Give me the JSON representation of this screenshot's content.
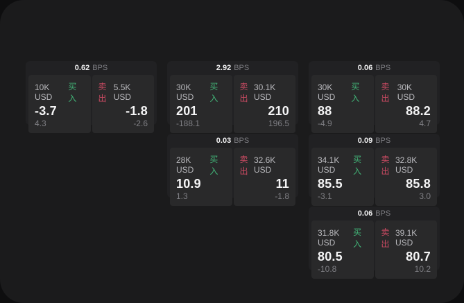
{
  "colors": {
    "buy_green": "#42b578",
    "sell_red": "#c94a62",
    "panel_bg": "#1b1b1c",
    "card_bg": "#212123",
    "subcard_bg": "#29292a"
  },
  "cards": [
    {
      "bps_value": "0.62",
      "bps_unit": "BPS",
      "buy": {
        "amount": "10K USD",
        "side_label": "买入",
        "value": "-3.7",
        "delta": "4.3"
      },
      "sell": {
        "side_label": "卖出",
        "amount": "5.5K USD",
        "value": "-1.8",
        "delta": "-2.6"
      }
    },
    {
      "bps_value": "2.92",
      "bps_unit": "BPS",
      "buy": {
        "amount": "30K USD",
        "side_label": "买入",
        "value": "201",
        "delta": "-188.1"
      },
      "sell": {
        "side_label": "卖出",
        "amount": "30.1K USD",
        "value": "210",
        "delta": "196.5"
      }
    },
    {
      "bps_value": "0.06",
      "bps_unit": "BPS",
      "buy": {
        "amount": "30K USD",
        "side_label": "买入",
        "value": "88",
        "delta": "-4.9"
      },
      "sell": {
        "side_label": "卖出",
        "amount": "30K USD",
        "value": "88.2",
        "delta": "4.7"
      }
    },
    {
      "bps_value": "0.03",
      "bps_unit": "BPS",
      "buy": {
        "amount": "28K USD",
        "side_label": "买入",
        "value": "10.9",
        "delta": "1.3"
      },
      "sell": {
        "side_label": "卖出",
        "amount": "32.6K USD",
        "value": "11",
        "delta": "-1.8"
      }
    },
    {
      "bps_value": "0.09",
      "bps_unit": "BPS",
      "buy": {
        "amount": "34.1K USD",
        "side_label": "买入",
        "value": "85.5",
        "delta": "-3.1"
      },
      "sell": {
        "side_label": "卖出",
        "amount": "32.8K USD",
        "value": "85.8",
        "delta": "3.0"
      }
    },
    {
      "bps_value": "0.06",
      "bps_unit": "BPS",
      "buy": {
        "amount": "31.8K USD",
        "side_label": "买入",
        "value": "80.5",
        "delta": "-10.8"
      },
      "sell": {
        "side_label": "卖出",
        "amount": "39.1K USD",
        "value": "80.7",
        "delta": "10.2"
      }
    }
  ]
}
